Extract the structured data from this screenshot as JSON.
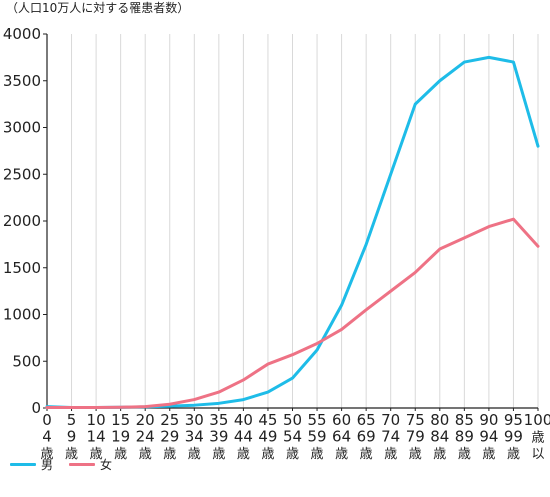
{
  "chart_data": {
    "type": "line",
    "unit_note": "（人口10万人に対する罹患者数）",
    "categories": [
      [
        "0",
        "4",
        "歳"
      ],
      [
        "5",
        "9",
        "歳"
      ],
      [
        "10",
        "14",
        "歳"
      ],
      [
        "15",
        "19",
        "歳"
      ],
      [
        "20",
        "24",
        "歳"
      ],
      [
        "25",
        "29",
        "歳"
      ],
      [
        "30",
        "34",
        "歳"
      ],
      [
        "35",
        "39",
        "歳"
      ],
      [
        "40",
        "44",
        "歳"
      ],
      [
        "45",
        "49",
        "歳"
      ],
      [
        "50",
        "54",
        "歳"
      ],
      [
        "55",
        "59",
        "歳"
      ],
      [
        "60",
        "64",
        "歳"
      ],
      [
        "65",
        "69",
        "歳"
      ],
      [
        "70",
        "74",
        "歳"
      ],
      [
        "75",
        "79",
        "歳"
      ],
      [
        "80",
        "84",
        "歳"
      ],
      [
        "85",
        "89",
        "歳"
      ],
      [
        "90",
        "94",
        "歳"
      ],
      [
        "95",
        "99",
        "歳"
      ],
      [
        "100",
        "歳",
        "以",
        "上"
      ]
    ],
    "series": [
      {
        "name": "男",
        "color": "#1EBCE8",
        "values": [
          15,
          5,
          5,
          8,
          12,
          20,
          30,
          50,
          90,
          170,
          320,
          620,
          1100,
          1750,
          2500,
          3250,
          3500,
          3700,
          3750,
          3700,
          2800
        ]
      },
      {
        "name": "女",
        "color": "#EE7285",
        "values": [
          5,
          5,
          5,
          8,
          15,
          40,
          90,
          170,
          300,
          470,
          570,
          690,
          840,
          1050,
          1250,
          1450,
          1700,
          1820,
          1940,
          2020,
          1730
        ]
      }
    ],
    "ylim": [
      0,
      4000
    ],
    "yticks": [
      0,
      500,
      1000,
      1500,
      2000,
      2500,
      3000,
      3500,
      4000
    ],
    "grid": "vertical",
    "legend_position": "bottom-left"
  }
}
